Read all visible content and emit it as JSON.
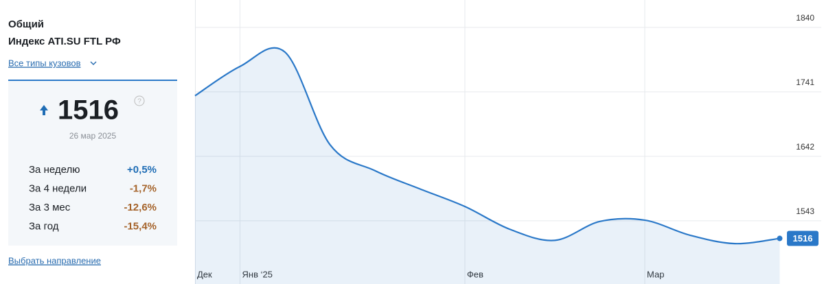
{
  "panel": {
    "title": "Общий",
    "subtitle": "Индекс ATI.SU FTL РФ",
    "filter_link": "Все типы кузовов",
    "value": "1516",
    "date": "26 мар 2025",
    "rows": [
      [
        "За неделю",
        "+0,5%"
      ],
      [
        "За 4 недели",
        "-1,7%"
      ],
      [
        "За 3 мес",
        "-12,6%"
      ],
      [
        "За год",
        "-15,4%"
      ]
    ],
    "direction_link": "Выбрать направление"
  },
  "chart_data": {
    "type": "area",
    "categories": [
      "Дек",
      "Янв ‘25",
      null,
      null,
      null,
      null,
      "Фев",
      null,
      null,
      null,
      "Мар",
      null,
      null,
      null
    ],
    "series": [
      {
        "name": "Индекс",
        "color": "#2a78c8",
        "values": [
          1735,
          1780,
          1802,
          1660,
          1620,
          1592,
          1565,
          1530,
          1513,
          1542,
          1544,
          1521,
          1508,
          1516
        ]
      }
    ],
    "ylim": [
      1446,
      1882
    ],
    "yticks": [
      1543,
      1642,
      1741,
      1840
    ],
    "grid": true
  }
}
